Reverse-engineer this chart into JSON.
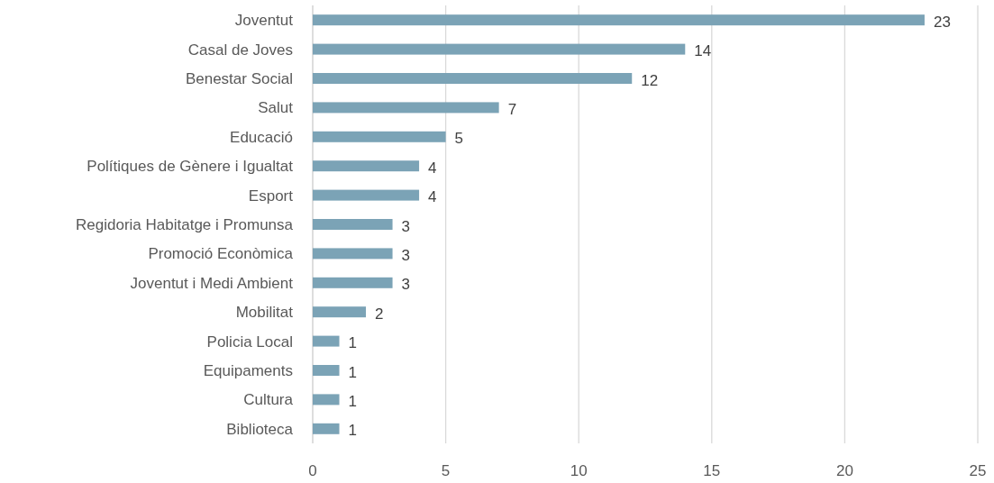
{
  "chart_data": {
    "type": "bar",
    "orientation": "horizontal",
    "categories": [
      "Joventut",
      "Casal de Joves",
      "Benestar Social",
      "Salut",
      "Educació",
      "Polítiques de Gènere i Igualtat",
      "Esport",
      "Regidoria Habitatge i Promunsa",
      "Promoció Econòmica",
      "Joventut i Medi Ambient",
      "Mobilitat",
      "Policia Local",
      "Equipaments",
      "Cultura",
      "Biblioteca"
    ],
    "values": [
      23,
      14,
      12,
      7,
      5,
      4,
      4,
      3,
      3,
      3,
      2,
      1,
      1,
      1,
      1
    ],
    "color": "#7ba3b6",
    "xlim": [
      0,
      25
    ],
    "xticks": [
      0,
      5,
      10,
      15,
      20,
      25
    ],
    "grid": "x",
    "data_labels": true
  }
}
